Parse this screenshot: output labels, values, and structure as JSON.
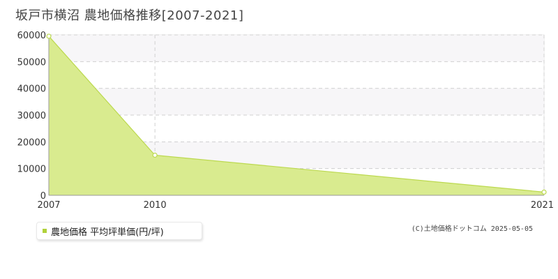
{
  "page": {
    "title": "坂戸市横沼  農地価格推移[2007-2021]",
    "legend_label": "農地価格 平均坪単価(円/坪)",
    "credit": "(C)土地価格ドットコム 2025-05-05"
  },
  "chart_data": {
    "type": "area",
    "title": "坂戸市横沼  農地価格推移[2007-2021]",
    "xlabel": "",
    "ylabel": "",
    "x": [
      2007,
      2010,
      2021
    ],
    "xlim": [
      2007,
      2021
    ],
    "xticks": [
      "2007",
      "2010",
      "2021"
    ],
    "ylim": [
      0,
      60000
    ],
    "yticks": [
      "0",
      "10000",
      "20000",
      "30000",
      "40000",
      "50000",
      "60000"
    ],
    "series": [
      {
        "name": "農地価格 平均坪単価(円/坪)",
        "values": [
          59500,
          15000,
          1200
        ]
      }
    ],
    "colors": {
      "fill": "#d9eb8f",
      "line": "#bcd94f",
      "grid": "#d0d0d0",
      "plot_band": "#f7f6f8"
    },
    "grid": true,
    "legend_position": "bottom-left"
  }
}
